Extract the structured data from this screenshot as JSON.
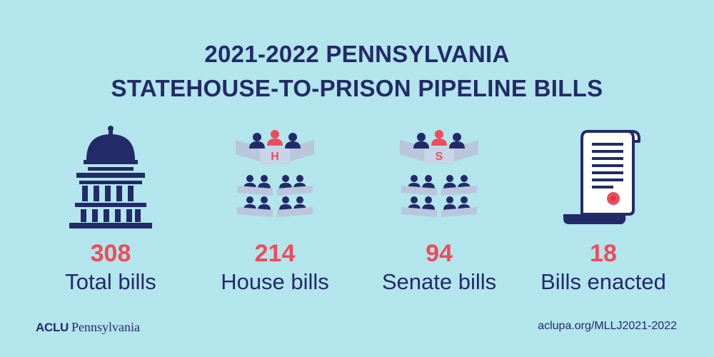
{
  "title": {
    "line1": "2021-2022 PENNSYLVANIA",
    "line2": "STATEHOUSE-TO-PRISON PIPELINE BILLS"
  },
  "stats": [
    {
      "value": "308",
      "label": "Total bills",
      "icon": "capitol-building-icon"
    },
    {
      "value": "214",
      "label": "House bills",
      "icon": "house-chamber-icon",
      "letter": "H"
    },
    {
      "value": "94",
      "label": "Senate bills",
      "icon": "senate-chamber-icon",
      "letter": "S"
    },
    {
      "value": "18",
      "label": "Bills enacted",
      "icon": "scroll-document-icon"
    }
  ],
  "footer": {
    "logo_aclu": "ACLU",
    "logo_state": "Pennsylvania",
    "url": "aclupa.org/MLLJ2021-2022"
  },
  "colors": {
    "background": "#b3e5ec",
    "navy": "#232a68",
    "accent_red": "#ef4b5a",
    "desk_gray": "#b9c6dc"
  }
}
